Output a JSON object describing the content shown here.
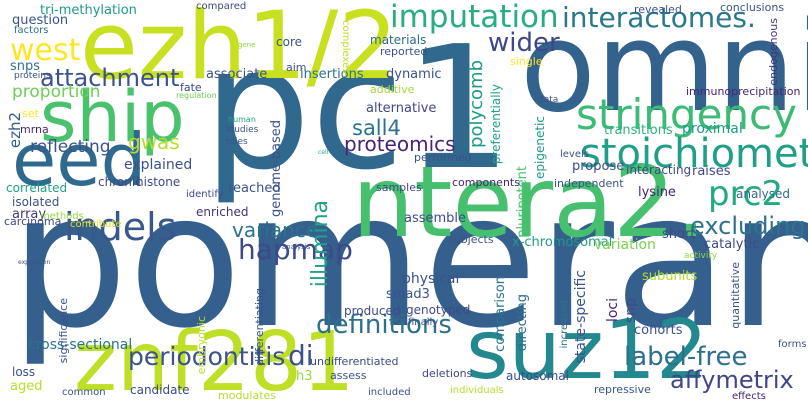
{
  "words": [
    {
      "text": "pomerania",
      "color": "#35608d"
    },
    {
      "text": "pc1",
      "color": "#31688e"
    },
    {
      "text": "omni",
      "color": "#33638d"
    },
    {
      "text": "ezh1/2",
      "color": "#c8e020"
    },
    {
      "text": "ntera2.",
      "color": "#46c06f"
    },
    {
      "text": "eed",
      "color": "#30698e"
    },
    {
      "text": "ship",
      "color": "#4ac16d"
    },
    {
      "text": "znf281",
      "color": "#bddf26"
    },
    {
      "text": "suz12",
      "color": "#23898e"
    },
    {
      "text": "stringency",
      "color": "#3bbb75"
    },
    {
      "text": "stoichiometry",
      "color": "#1f9f88"
    },
    {
      "text": "imputation",
      "color": "#27ad81"
    },
    {
      "text": "interactomes.",
      "color": "#2a788e"
    },
    {
      "text": "indels",
      "color": "#38588c"
    },
    {
      "text": "hapmap",
      "color": "#3e4989"
    },
    {
      "text": "prc2",
      "color": "#24aa83"
    },
    {
      "text": "west",
      "color": "#fde725"
    },
    {
      "text": "attachment",
      "color": "#3b528b"
    },
    {
      "text": "wider",
      "color": "#3f4788"
    },
    {
      "text": "definitions",
      "color": "#2d708e"
    },
    {
      "text": "periodontitis",
      "color": "#3b528b"
    },
    {
      "text": "di",
      "color": "#3b528b"
    },
    {
      "text": "variance",
      "color": "#2c728e"
    },
    {
      "text": "excluding",
      "color": "#2c738e"
    },
    {
      "text": "label-free",
      "color": "#2e6e8e"
    },
    {
      "text": "affymetrix",
      "color": "#404688"
    },
    {
      "text": "illumina",
      "color": "#20a486"
    },
    {
      "text": "gwas",
      "color": "#b5de2b"
    },
    {
      "text": "proteomics",
      "color": "#482475"
    },
    {
      "text": "sall4",
      "color": "#2c728e"
    },
    {
      "text": "polycomb",
      "color": "#1f9a8a"
    },
    {
      "text": "proportion",
      "color": "#6ece58"
    },
    {
      "text": "question",
      "color": "#3a548c"
    },
    {
      "text": "tri-methylation",
      "color": "#1f9a8a"
    },
    {
      "text": "snps",
      "color": "#2c728e"
    },
    {
      "text": "reflecting",
      "color": "#3b528b"
    },
    {
      "text": "ezh2",
      "color": "#375a8c"
    },
    {
      "text": "set",
      "color": "#fde725"
    },
    {
      "text": "mrna",
      "color": "#482777"
    },
    {
      "text": "explained",
      "color": "#3b528b"
    },
    {
      "text": "array",
      "color": "#443983"
    },
    {
      "text": "isolated",
      "color": "#3b528b"
    },
    {
      "text": "carcinoma",
      "color": "#3e4989"
    },
    {
      "text": "correlated",
      "color": "#1fa287"
    },
    {
      "text": "chronic",
      "color": "#404688"
    },
    {
      "text": "methods",
      "color": "#95d840"
    },
    {
      "text": "contribute",
      "color": "#dde318"
    },
    {
      "text": "histone",
      "color": "#3e4989"
    },
    {
      "text": "identify",
      "color": "#3e4989"
    },
    {
      "text": "enriched",
      "color": "#46327e"
    },
    {
      "text": "reached",
      "color": "#3b528b"
    },
    {
      "text": "genome-based",
      "color": "#3b528b"
    },
    {
      "text": "associate",
      "color": "#3b528b"
    },
    {
      "text": "insertions",
      "color": "#2d708e"
    },
    {
      "text": "dynamic",
      "color": "#3b528b"
    },
    {
      "text": "alternative",
      "color": "#404688"
    },
    {
      "text": "additive",
      "color": "#a5db36"
    },
    {
      "text": "materials",
      "color": "#306a8e"
    },
    {
      "text": "core",
      "color": "#3b528b"
    },
    {
      "text": "aim",
      "color": "#3b528b"
    },
    {
      "text": "reported",
      "color": "#3b528b"
    },
    {
      "text": "compared",
      "color": "#3e4989"
    },
    {
      "text": "complexes",
      "color": "#bddf26"
    },
    {
      "text": "factors",
      "color": "#2c728e"
    },
    {
      "text": "proteins",
      "color": "#3b528b"
    },
    {
      "text": "gene",
      "color": "#95d840"
    },
    {
      "text": "fate",
      "color": "#3e4989"
    },
    {
      "text": "regulation",
      "color": "#6ece58"
    },
    {
      "text": "human",
      "color": "#20a486"
    },
    {
      "text": "studies",
      "color": "#3b528b"
    },
    {
      "text": "roles",
      "color": "#3b528b"
    },
    {
      "text": "cell",
      "color": "#20a486"
    },
    {
      "text": "performed",
      "color": "#3b528b"
    },
    {
      "text": "data",
      "color": "#3b528b"
    },
    {
      "text": "preferentially",
      "color": "#1fa287"
    },
    {
      "text": "pluripotent",
      "color": "#4ac16d"
    },
    {
      "text": "epigenetic",
      "color": "#1f9a8a"
    },
    {
      "text": "single",
      "color": "#fde725"
    },
    {
      "text": "revealed",
      "color": "#3b528b"
    },
    {
      "text": "conclusions",
      "color": "#3b528b"
    },
    {
      "text": "endogenous",
      "color": "#46327e"
    },
    {
      "text": "immunoprecipitation",
      "color": "#482475"
    },
    {
      "text": "proximal",
      "color": "#1f9a8a"
    },
    {
      "text": "transitions",
      "color": "#2db27d"
    },
    {
      "text": "levels",
      "color": "#3b528b"
    },
    {
      "text": "propose",
      "color": "#3e4989"
    },
    {
      "text": "raises",
      "color": "#3e4989"
    },
    {
      "text": "interacting",
      "color": "#3e4989"
    },
    {
      "text": "lysine",
      "color": "#482475"
    },
    {
      "text": "independent",
      "color": "#3b528b"
    },
    {
      "text": "analysed",
      "color": "#31688e"
    },
    {
      "text": "short",
      "color": "#3e4989"
    },
    {
      "text": "catalytic",
      "color": "#3e4989"
    },
    {
      "text": "components",
      "color": "#482475"
    },
    {
      "text": "samples",
      "color": "#3e4989"
    },
    {
      "text": "assemble",
      "color": "#3e4989"
    },
    {
      "text": "subjects",
      "color": "#3b528b"
    },
    {
      "text": "x-chromosomal",
      "color": "#1f9a8a"
    },
    {
      "text": "variation",
      "color": "#7ad151"
    },
    {
      "text": "physical",
      "color": "#3b528b"
    },
    {
      "text": "produced",
      "color": "#3e4989"
    },
    {
      "text": "genotyped",
      "color": "#3e4989"
    },
    {
      "text": "smad3",
      "color": "#3b528b"
    },
    {
      "text": "finally",
      "color": "#3b528b"
    },
    {
      "text": "comparison",
      "color": "#2c728e"
    },
    {
      "text": "directing",
      "color": "#2c728e"
    },
    {
      "text": "increased",
      "color": "#2c728e"
    },
    {
      "text": "state-specific",
      "color": "#3b528b"
    },
    {
      "text": "loci",
      "color": "#482475"
    },
    {
      "text": "snp",
      "color": "#3e4989"
    },
    {
      "text": "subunits",
      "color": "#b5de2b"
    },
    {
      "text": "activity",
      "color": "#95d840"
    },
    {
      "text": "quantitative",
      "color": "#3b528b"
    },
    {
      "text": "forms",
      "color": "#3b528b"
    },
    {
      "text": "effects",
      "color": "#482475"
    },
    {
      "text": "cohorts",
      "color": "#3b528b"
    },
    {
      "text": "repressive",
      "color": "#3b528b"
    },
    {
      "text": "individuals",
      "color": "#b5de2b"
    },
    {
      "text": "autosomal",
      "color": "#3e4989"
    },
    {
      "text": "deletions",
      "color": "#404688"
    },
    {
      "text": "undifferentiated",
      "color": "#3e4989"
    },
    {
      "text": "included",
      "color": "#3b528b"
    },
    {
      "text": "assess",
      "color": "#3b528b"
    },
    {
      "text": "h3",
      "color": "#95d840"
    },
    {
      "text": "modulates",
      "color": "#b5de2b"
    },
    {
      "text": "candidate",
      "color": "#3e4989"
    },
    {
      "text": "common",
      "color": "#3b528b"
    },
    {
      "text": "aged",
      "color": "#b5de2b"
    },
    {
      "text": "loss",
      "color": "#3b528b"
    },
    {
      "text": "cross-sectional",
      "color": "#2c728e"
    },
    {
      "text": "significance",
      "color": "#3b528b"
    },
    {
      "text": "embryonic",
      "color": "#b5de2b"
    },
    {
      "text": "differentiating",
      "color": "#3b528b"
    },
    {
      "text": "analysis",
      "color": "#3b528b"
    },
    {
      "text": "expression",
      "color": "#3b528b"
    }
  ]
}
